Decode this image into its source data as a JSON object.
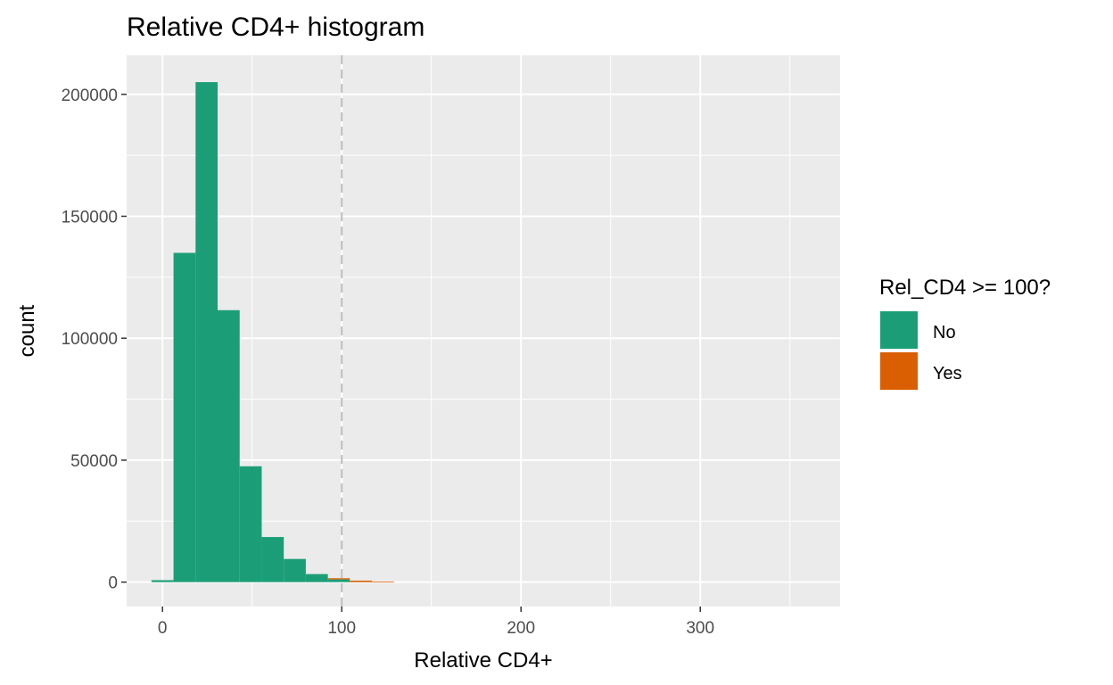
{
  "chart_data": {
    "type": "bar",
    "title": "Relative CD4+ histogram",
    "xlabel": "Relative CD4+",
    "ylabel": "count",
    "xlim": [
      -20,
      378
    ],
    "ylim": [
      -10000,
      216000
    ],
    "x_ticks": [
      0,
      100,
      200,
      300
    ],
    "x_tick_labels": [
      "0",
      "100",
      "200",
      "300"
    ],
    "y_ticks": [
      0,
      50000,
      100000,
      150000,
      200000
    ],
    "y_tick_labels": [
      "0",
      "50000",
      "100000",
      "150000",
      "200000"
    ],
    "grid": true,
    "bin_width": 12.3,
    "reference_line": {
      "x": 100,
      "style": "dashed"
    },
    "legend": {
      "title": "Rel_CD4 >= 100?",
      "position": "right",
      "entries": [
        {
          "label": "No",
          "color": "#1b9e77"
        },
        {
          "label": "Yes",
          "color": "#d95f02"
        }
      ]
    },
    "series": [
      {
        "name": "No",
        "color": "#1b9e77",
        "bins": [
          {
            "x": 0.0,
            "count": 800
          },
          {
            "x": 12.3,
            "count": 135000
          },
          {
            "x": 24.6,
            "count": 205000
          },
          {
            "x": 36.9,
            "count": 111500
          },
          {
            "x": 49.2,
            "count": 47500
          },
          {
            "x": 61.5,
            "count": 18500
          },
          {
            "x": 73.8,
            "count": 9500
          },
          {
            "x": 86.1,
            "count": 3300
          },
          {
            "x": 98.4,
            "count": 1100
          }
        ]
      },
      {
        "name": "Yes",
        "color": "#d95f02",
        "bins": [
          {
            "x": 98.4,
            "count": 500
          },
          {
            "x": 110.7,
            "count": 600
          },
          {
            "x": 123.0,
            "count": 250
          }
        ]
      }
    ]
  }
}
